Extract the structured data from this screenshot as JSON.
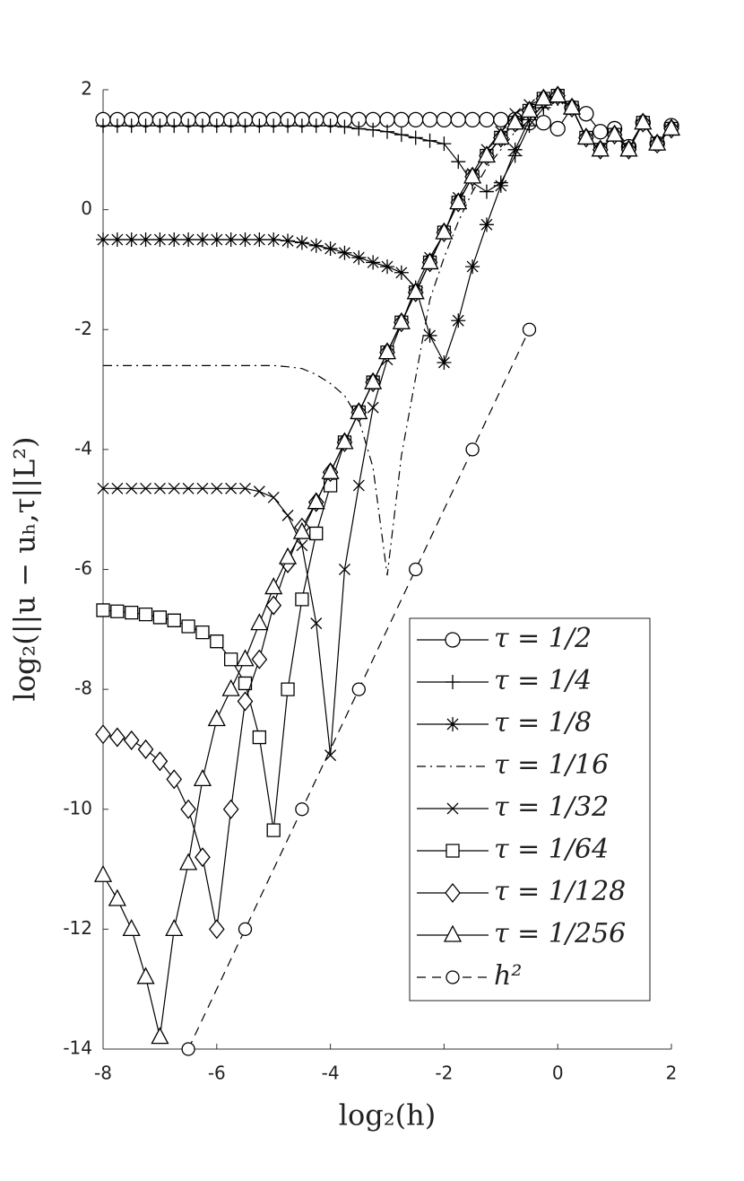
{
  "chart_data": {
    "type": "line",
    "x_label": "log₂(h)",
    "y_label": "log₂(||u − uₕ,τ||L²)",
    "x": [
      -8,
      -7.75,
      -7.5,
      -7.25,
      -7,
      -6.75,
      -6.5,
      -6.25,
      -6,
      -5.75,
      -5.5,
      -5.25,
      -5,
      -4.75,
      -4.5,
      -4.25,
      -4,
      -3.75,
      -3.5,
      -3.25,
      -3,
      -2.75,
      -2.5,
      -2.25,
      -2,
      -1.75,
      -1.5,
      -1.25,
      -1,
      -0.75,
      -0.5,
      -0.25,
      0,
      0.25,
      0.5,
      0.75,
      1,
      1.25,
      1.5,
      1.75,
      2
    ],
    "xlim": [
      -8,
      2
    ],
    "xticks": [
      -8,
      -6,
      -4,
      -2,
      0,
      2
    ],
    "ylim": [
      -14,
      2
    ],
    "yticks": [
      -14,
      -12,
      -10,
      -8,
      -6,
      -4,
      -2,
      0,
      2
    ],
    "series": [
      {
        "name": "τ = 1/2",
        "color": "#000000",
        "marker": "circle",
        "dash": "solid",
        "values": [
          1.5,
          1.5,
          1.5,
          1.5,
          1.5,
          1.5,
          1.5,
          1.5,
          1.5,
          1.5,
          1.5,
          1.5,
          1.5,
          1.5,
          1.5,
          1.5,
          1.5,
          1.5,
          1.5,
          1.5,
          1.5,
          1.5,
          1.5,
          1.5,
          1.5,
          1.5,
          1.5,
          1.5,
          1.5,
          1.5,
          1.45,
          1.45,
          1.35,
          1.7,
          1.6,
          1.3,
          1.35,
          1.05,
          1.45,
          1.1,
          1.4
        ]
      },
      {
        "name": "τ = 1/4",
        "color": "#000000",
        "marker": "plus",
        "dash": "solid",
        "values": [
          1.4,
          1.4,
          1.4,
          1.4,
          1.4,
          1.4,
          1.4,
          1.4,
          1.4,
          1.4,
          1.4,
          1.4,
          1.4,
          1.4,
          1.4,
          1.4,
          1.4,
          1.38,
          1.35,
          1.33,
          1.3,
          1.25,
          1.2,
          1.15,
          1.1,
          0.8,
          0.45,
          0.3,
          0.45,
          0.9,
          1.4,
          1.7,
          1.85,
          1.7,
          1.2,
          1.0,
          1.25,
          1.0,
          1.45,
          1.1,
          1.35
        ]
      },
      {
        "name": "τ = 1/8",
        "color": "#000000",
        "marker": "star",
        "dash": "solid",
        "values": [
          -0.5,
          -0.5,
          -0.5,
          -0.5,
          -0.5,
          -0.5,
          -0.5,
          -0.5,
          -0.5,
          -0.5,
          -0.5,
          -0.5,
          -0.5,
          -0.52,
          -0.55,
          -0.6,
          -0.65,
          -0.72,
          -0.8,
          -0.88,
          -0.95,
          -1.05,
          -1.3,
          -2.1,
          -2.55,
          -1.85,
          -0.95,
          -0.25,
          0.4,
          1.0,
          1.5,
          1.75,
          1.85,
          1.7,
          1.2,
          1.0,
          1.25,
          1.0,
          1.45,
          1.1,
          1.35
        ]
      },
      {
        "name": "τ = 1/16",
        "color": "#000000",
        "marker": "none",
        "dash": "dashdot",
        "values": [
          -2.6,
          -2.6,
          -2.6,
          -2.6,
          -2.6,
          -2.6,
          -2.6,
          -2.6,
          -2.6,
          -2.6,
          -2.6,
          -2.6,
          -2.6,
          -2.62,
          -2.65,
          -2.75,
          -2.9,
          -3.1,
          -3.5,
          -4.3,
          -6.1,
          -4.1,
          -2.8,
          -1.5,
          -0.8,
          -0.2,
          0.3,
          0.7,
          1.0,
          1.3,
          1.5,
          1.75,
          1.85,
          1.7,
          1.2,
          1.0,
          1.25,
          1.0,
          1.45,
          1.1,
          1.35
        ]
      },
      {
        "name": "τ = 1/32",
        "color": "#000000",
        "marker": "cross",
        "dash": "solid",
        "values": [
          -4.65,
          -4.65,
          -4.65,
          -4.65,
          -4.65,
          -4.65,
          -4.65,
          -4.65,
          -4.65,
          -4.65,
          -4.65,
          -4.7,
          -4.8,
          -5.1,
          -5.6,
          -6.9,
          -9.1,
          -6.0,
          -4.6,
          -3.3,
          -2.5,
          -1.9,
          -1.3,
          -0.8,
          -0.4,
          0.2,
          0.6,
          1.0,
          1.3,
          1.6,
          1.75,
          1.85,
          1.9,
          1.7,
          1.2,
          1.0,
          1.25,
          1.0,
          1.45,
          1.1,
          1.35
        ]
      },
      {
        "name": "τ = 1/64",
        "color": "#000000",
        "marker": "square",
        "dash": "solid",
        "values": [
          -6.68,
          -6.7,
          -6.72,
          -6.75,
          -6.8,
          -6.85,
          -6.95,
          -7.05,
          -7.2,
          -7.5,
          -7.9,
          -8.8,
          -10.35,
          -8.0,
          -6.5,
          -5.4,
          -4.6,
          -3.88,
          -3.38,
          -2.88,
          -2.38,
          -1.88,
          -1.38,
          -0.88,
          -0.38,
          0.12,
          0.55,
          0.9,
          1.2,
          1.45,
          1.65,
          1.85,
          1.9,
          1.7,
          1.2,
          1.0,
          1.25,
          1.0,
          1.45,
          1.1,
          1.35
        ]
      },
      {
        "name": "τ = 1/128",
        "color": "#000000",
        "marker": "diamond",
        "dash": "solid",
        "values": [
          -8.75,
          -8.8,
          -8.85,
          -9.0,
          -9.2,
          -9.5,
          -10.0,
          -10.8,
          -12.0,
          -10.0,
          -8.2,
          -7.5,
          -6.6,
          -5.9,
          -5.3,
          -4.88,
          -4.38,
          -3.88,
          -3.38,
          -2.88,
          -2.38,
          -1.88,
          -1.38,
          -0.88,
          -0.38,
          0.12,
          0.55,
          0.9,
          1.2,
          1.45,
          1.65,
          1.85,
          1.9,
          1.7,
          1.2,
          1.0,
          1.25,
          1.0,
          1.45,
          1.1,
          1.35
        ]
      },
      {
        "name": "τ = 1/256",
        "color": "#000000",
        "marker": "triangle",
        "dash": "solid",
        "values": [
          -11.1,
          -11.5,
          -12.0,
          -12.8,
          -13.8,
          -12.0,
          -10.9,
          -9.5,
          -8.5,
          -8.0,
          -7.5,
          -6.9,
          -6.3,
          -5.8,
          -5.38,
          -4.88,
          -4.38,
          -3.88,
          -3.38,
          -2.88,
          -2.38,
          -1.88,
          -1.38,
          -0.88,
          -0.38,
          0.12,
          0.55,
          0.9,
          1.2,
          1.45,
          1.65,
          1.85,
          1.9,
          1.7,
          1.2,
          1.0,
          1.25,
          1.0,
          1.45,
          1.1,
          1.35
        ]
      },
      {
        "name": "h²",
        "color": "#000000",
        "marker": "smallcircle",
        "dash": "dashed",
        "x": [
          -6.5,
          -5.5,
          -4.5,
          -3.5,
          -2.5,
          -1.5,
          -0.5
        ],
        "values": [
          -14,
          -12,
          -10,
          -8,
          -6,
          -4,
          -2
        ]
      }
    ],
    "legend": "lower right"
  }
}
